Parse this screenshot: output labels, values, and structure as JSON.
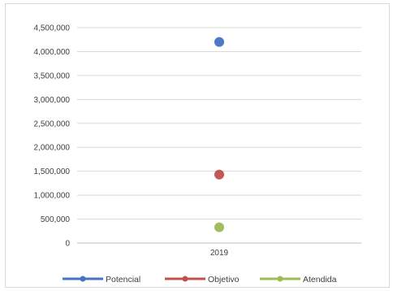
{
  "chart_data": {
    "type": "scatter",
    "title": "",
    "xlabel": "",
    "ylabel": "",
    "categories": [
      "2019"
    ],
    "ylim": [
      0,
      4500000
    ],
    "y_ticks": [
      0,
      500000,
      1000000,
      1500000,
      2000000,
      2500000,
      3000000,
      3500000,
      4000000,
      4500000
    ],
    "y_tick_labels": [
      "0",
      "500,000",
      "1,000,000",
      "1,500,000",
      "2,000,000",
      "2,500,000",
      "3,000,000",
      "3,500,000",
      "4,000,000",
      "4,500,000"
    ],
    "grid": true,
    "legend_position": "bottom",
    "series": [
      {
        "name": "Potencial",
        "color": "#4472c4",
        "values": [
          4200000
        ]
      },
      {
        "name": "Objetivo",
        "color": "#c0504d",
        "values": [
          1430000
        ]
      },
      {
        "name": "Atendida",
        "color": "#9bbb59",
        "values": [
          330000
        ]
      }
    ]
  }
}
